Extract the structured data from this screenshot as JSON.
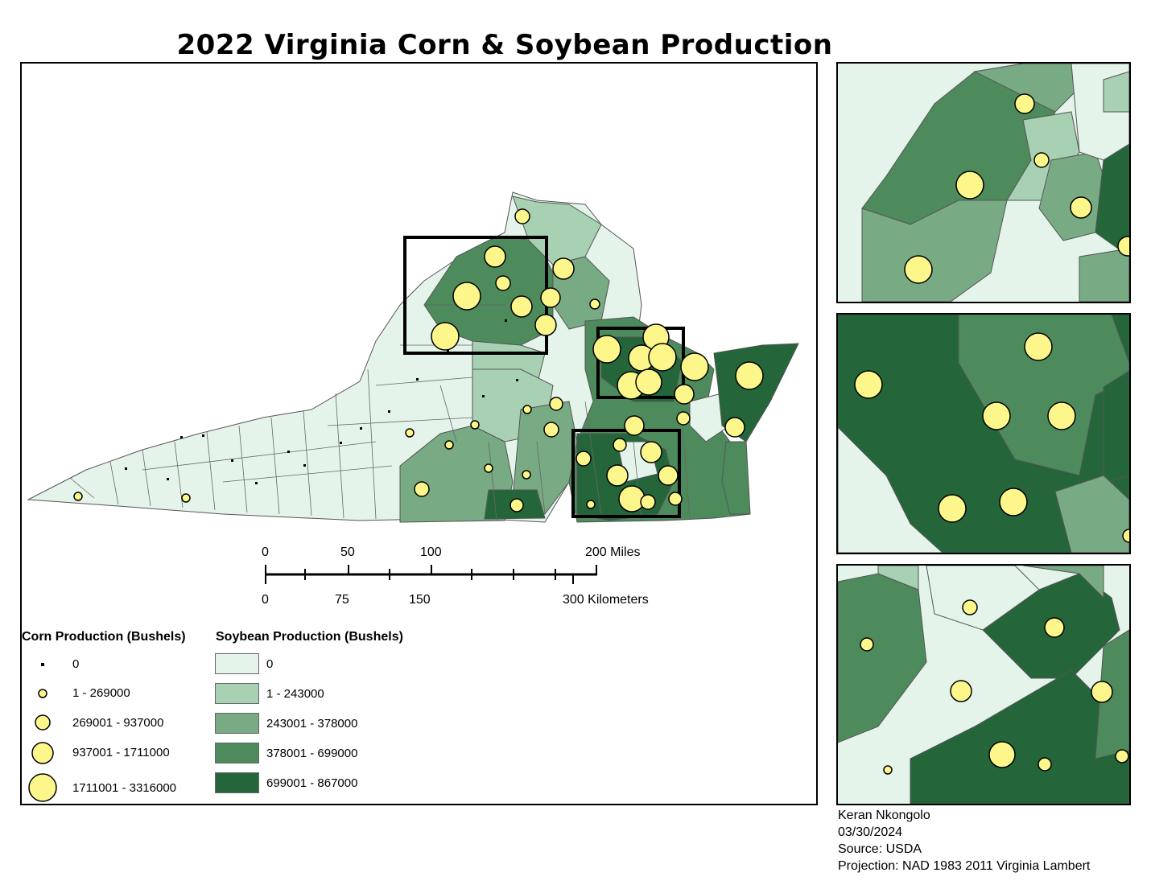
{
  "title": "2022 Virginia Corn & Soybean Production",
  "colors": {
    "soy_0": "#e5f4ea",
    "soy_1": "#a8d1b3",
    "soy_2": "#78aa84",
    "soy_3": "#4e8b5c",
    "soy_4": "#24663a",
    "corn_fill": "#fdf68a",
    "border": "#555555"
  },
  "scale_bar": {
    "miles_ticks": [
      "0",
      "50",
      "100",
      "200 Miles"
    ],
    "km_ticks": [
      "0",
      "75",
      "150",
      "300 Kilometers"
    ]
  },
  "legend": {
    "corn": {
      "heading": "Corn Production (Bushels)",
      "classes": [
        "0",
        "1 - 269000",
        "269001 - 937000",
        "937001 - 1711000",
        "1711001 - 3316000"
      ]
    },
    "soybean": {
      "heading": "Soybean Production (Bushels)",
      "classes": [
        "0",
        "1 - 243000",
        "243001 - 378000",
        "378001 - 699000",
        "699001 - 867000"
      ]
    }
  },
  "credits": {
    "author": "Keran Nkongolo",
    "date": "03/30/2024",
    "source": "Source: USDA",
    "projection": "Projection: NAD 1983 2011 Virginia Lambert"
  }
}
